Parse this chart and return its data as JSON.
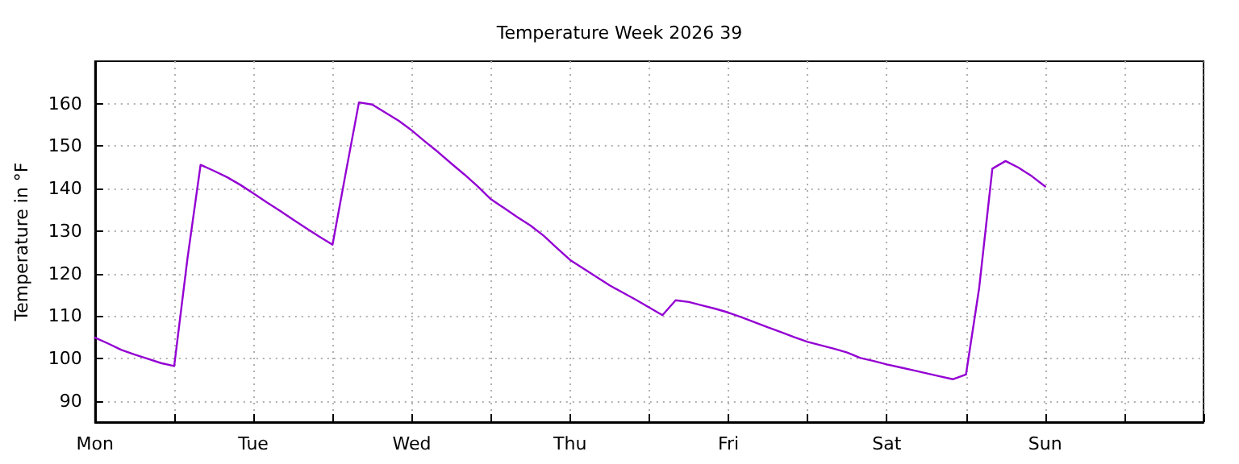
{
  "chart_data": {
    "type": "line",
    "title": "Temperature Week 2026 39",
    "ylabel": "Temperature in °F",
    "categories": [
      "Mon",
      null,
      null,
      null,
      null,
      null,
      null,
      null,
      null,
      null,
      null,
      null,
      "Tue",
      null,
      null,
      null,
      null,
      null,
      null,
      null,
      null,
      null,
      null,
      null,
      "Wed",
      null,
      null,
      null,
      null,
      null,
      null,
      null,
      null,
      null,
      null,
      null,
      "Thu",
      null,
      null,
      null,
      null,
      null,
      null,
      null,
      null,
      null,
      null,
      null,
      "Fri",
      null,
      null,
      null,
      null,
      null,
      null,
      null,
      null,
      null,
      null,
      null,
      "Sat",
      null,
      null,
      null,
      null,
      null,
      null,
      null,
      null,
      null,
      null,
      null,
      "Sun",
      null,
      null,
      null,
      null,
      null,
      null,
      null,
      null,
      null,
      null,
      null,
      null
    ],
    "series": [
      {
        "color": "#9400d3",
        "values": [
          104.9,
          103.5,
          102.0,
          100.9,
          99.9,
          98.9,
          98.2,
          123.4,
          145.6,
          144.2,
          142.7,
          140.9,
          138.9,
          136.8,
          134.8,
          132.7,
          130.7,
          128.7,
          126.8,
          143.7,
          160.3,
          159.8,
          157.9,
          156.0,
          153.7,
          151.1,
          148.6,
          145.9,
          143.3,
          140.5,
          137.5,
          135.4,
          133.3,
          131.3,
          128.9,
          126.0,
          123.2,
          121.2,
          119.2,
          117.2,
          115.5,
          113.8,
          112.0,
          110.2,
          113.7,
          113.3,
          112.5,
          111.7,
          110.8,
          109.7,
          108.5,
          107.3,
          106.2,
          105.0,
          103.9,
          103.1,
          102.3,
          101.4,
          100.1,
          99.4,
          98.6,
          97.9,
          97.2,
          96.5,
          95.8,
          95.1,
          96.2,
          116.6,
          144.7,
          146.5,
          144.9,
          142.9,
          140.5,
          null,
          null,
          null,
          null,
          null,
          null,
          null,
          null,
          null,
          null,
          null,
          null
        ]
      }
    ],
    "ylim": [
      85,
      170
    ],
    "yticks": [
      90,
      100,
      110,
      120,
      130,
      140,
      150,
      160
    ],
    "grid": true,
    "marker": "none",
    "line_style": "solid"
  }
}
